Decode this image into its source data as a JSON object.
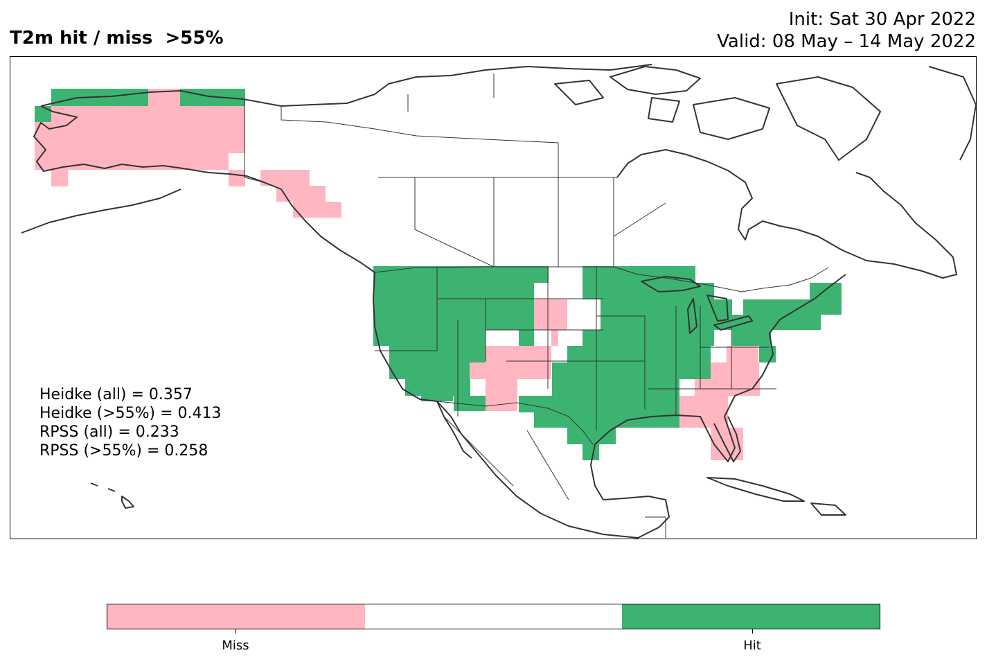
{
  "header": {
    "title": "T2m hit / miss  >55%",
    "init": "Init: Sat 30 Apr 2022",
    "valid": "Valid: 08 May – 14 May 2022"
  },
  "stats": [
    "Heidke (all) = 0.357",
    "Heidke (>55%) = 0.413",
    "RPSS (all) = 0.233",
    "RPSS (>55%) = 0.258"
  ],
  "legend": {
    "segments": [
      {
        "color": "#ffb6c1",
        "label": "Miss"
      },
      {
        "color": "#ffffff",
        "label": ""
      },
      {
        "color": "#3cb371",
        "label": "Hit"
      }
    ]
  },
  "colors": {
    "miss": "#ffb6c1",
    "hit": "#3cb371",
    "coast": "#333333",
    "border": "#000000"
  }
}
